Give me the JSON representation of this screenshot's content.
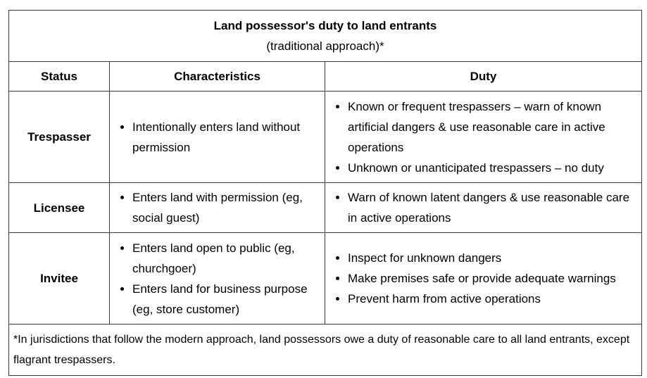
{
  "table": {
    "title": "Land possessor's duty to land entrants",
    "subtitle": "(traditional approach)*",
    "headers": {
      "status": "Status",
      "characteristics": "Characteristics",
      "duty": "Duty"
    },
    "rows": [
      {
        "status": "Trespasser",
        "characteristics": [
          "Intentionally enters land without permission"
        ],
        "duty": [
          "Known or frequent trespassers – warn of known artificial dangers & use reasonable care in active operations",
          "Unknown or unanticipated trespassers – no duty"
        ]
      },
      {
        "status": "Licensee",
        "characteristics": [
          "Enters land with permission (eg, social guest)"
        ],
        "duty": [
          "Warn of known latent dangers & use reasonable care in active operations"
        ]
      },
      {
        "status": "Invitee",
        "characteristics": [
          "Enters land open to public (eg, churchgoer)",
          "Enters land for business purpose (eg, store customer)"
        ],
        "duty": [
          "Inspect for unknown dangers",
          "Make premises safe or provide adequate warnings",
          "Prevent harm from active operations"
        ]
      }
    ],
    "footnote": "*In jurisdictions that follow the modern approach, land possessors owe a duty of reasonable care to all land entrants, except flagrant trespassers."
  }
}
